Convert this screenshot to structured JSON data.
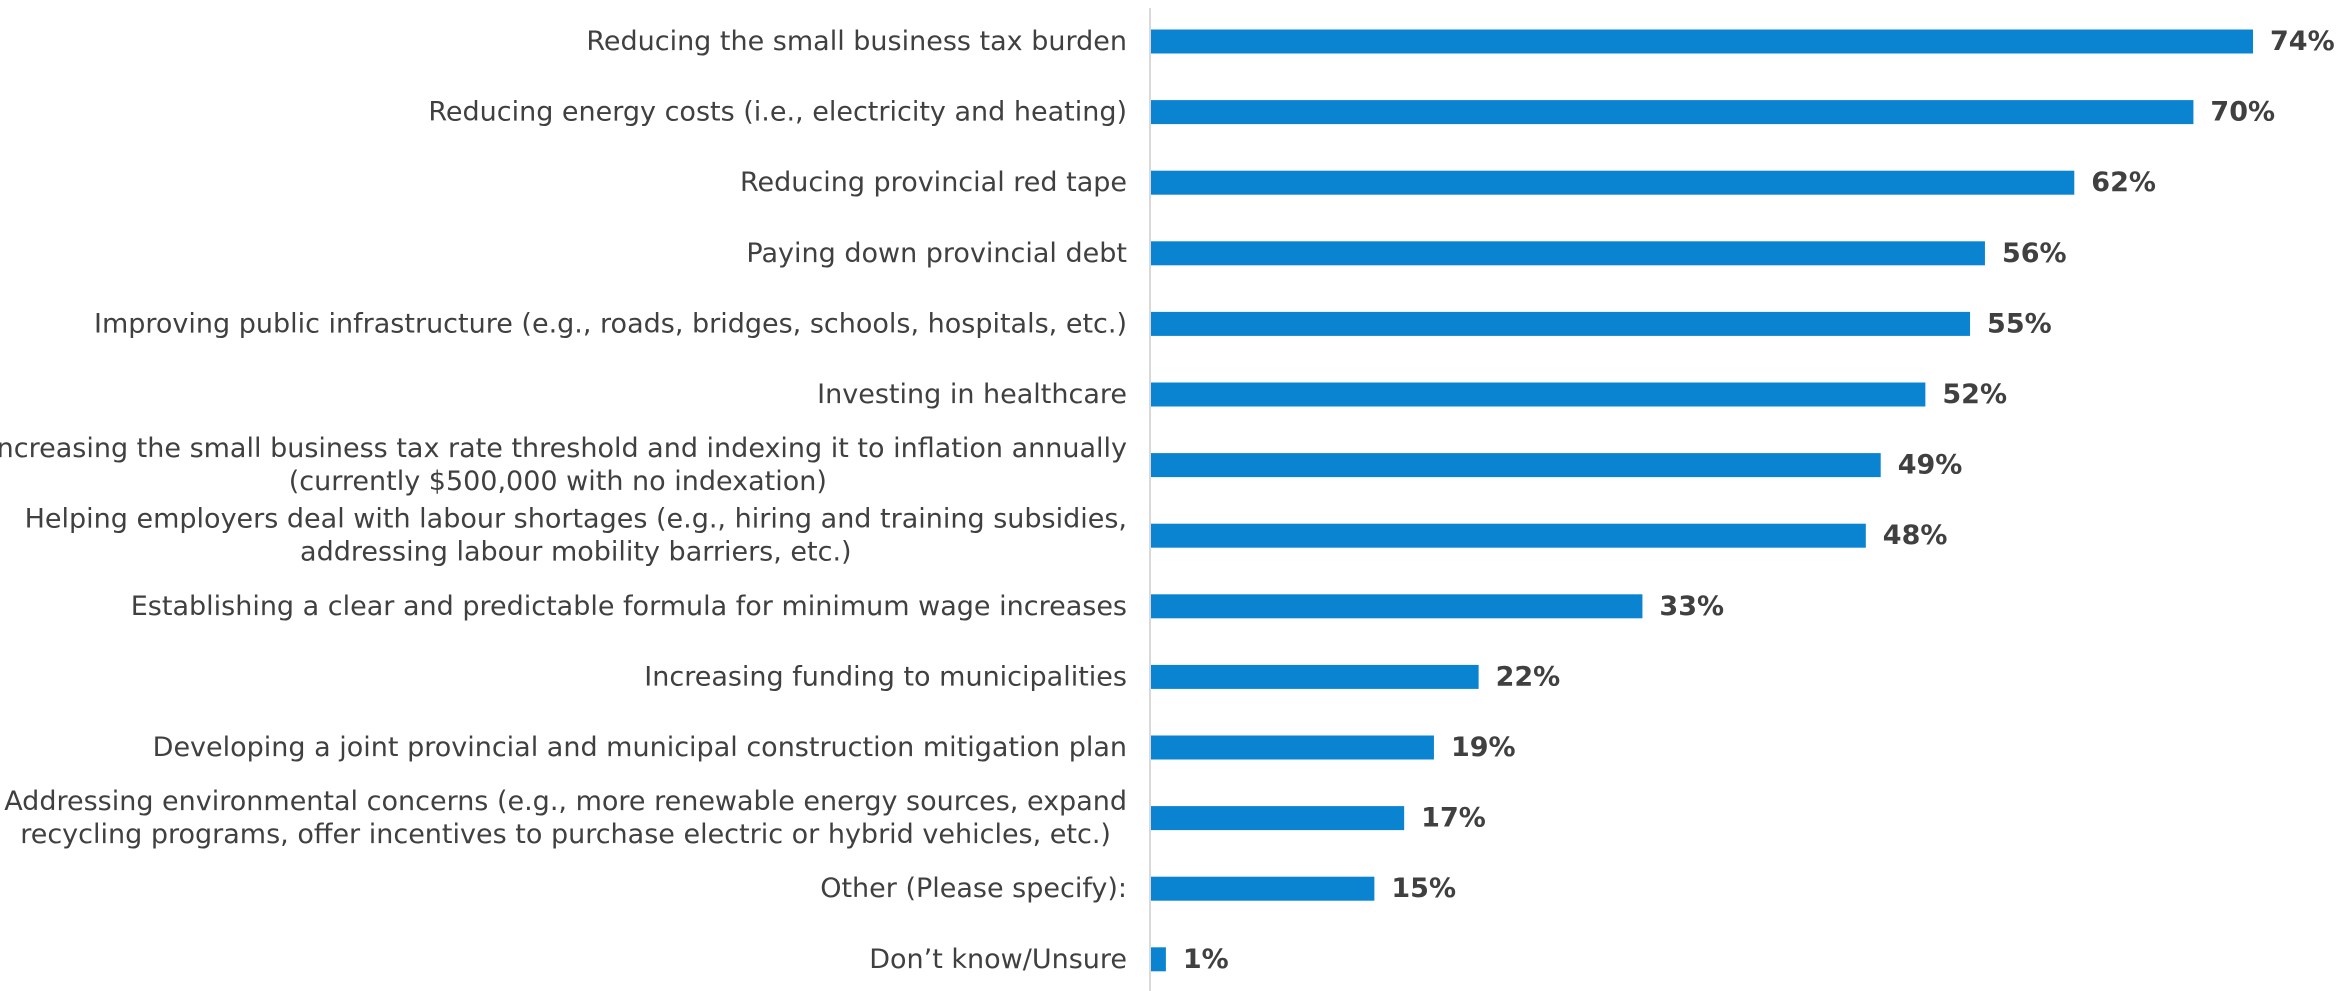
{
  "chart_data": {
    "type": "bar",
    "orientation": "horizontal",
    "categories": [
      [
        "Reducing the small business tax burden"
      ],
      [
        "Reducing energy costs (i.e., electricity and heating)"
      ],
      [
        "Reducing provincial red tape"
      ],
      [
        "Paying down provincial debt"
      ],
      [
        "Improving public infrastructure (e.g., roads, bridges, schools, hospitals, etc.)"
      ],
      [
        "Investing in healthcare"
      ],
      [
        "Increasing the small business tax rate threshold and indexing it to inflation annually",
        "(currently $500,000 with no indexation)"
      ],
      [
        "Helping employers deal with labour shortages (e.g., hiring and training subsidies,",
        "addressing labour mobility barriers, etc.)"
      ],
      [
        "Establishing a clear and predictable formula for minimum wage increases"
      ],
      [
        "Increasing funding to municipalities"
      ],
      [
        "Developing a joint provincial and municipal construction mitigation plan"
      ],
      [
        "Addressing environmental concerns (e.g., more renewable energy sources, expand",
        "recycling programs, offer incentives to purchase electric or hybrid vehicles, etc.)"
      ],
      [
        "Other (Please specify):"
      ],
      [
        "Don’t know/Unsure"
      ]
    ],
    "values": [
      74,
      70,
      62,
      56,
      55,
      52,
      49,
      48,
      33,
      22,
      19,
      17,
      15,
      1
    ],
    "value_labels": [
      "74%",
      "70%",
      "62%",
      "56%",
      "55%",
      "52%",
      "49%",
      "48%",
      "33%",
      "22%",
      "19%",
      "17%",
      "15%",
      "1%"
    ],
    "unit": "%",
    "xlim": [
      0,
      80
    ],
    "grid": false,
    "legend": "none",
    "bar_color": "#0a84d0",
    "label_color": "#404040",
    "axis_color": "#d9d9d9"
  }
}
